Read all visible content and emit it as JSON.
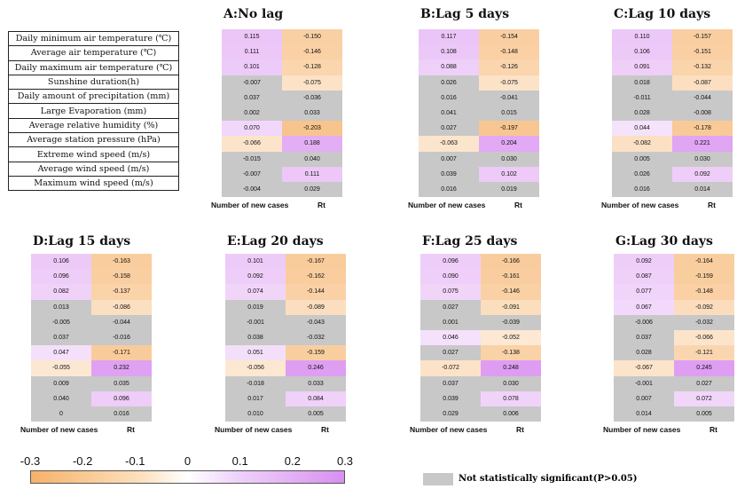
{
  "chart_data": {
    "type": "heatmap",
    "rows": [
      "Daily minimum air temperature (℃)",
      "Average air temperature (℃)",
      "Daily maximum air temperature (℃)",
      "Sunshine duration(h)",
      "Daily amount of precipitation (mm)",
      "Large Evaporation (mm)",
      "Average relative humidity (%)",
      "Average station pressure (hPa)",
      "Extreme wind speed (m/s)",
      "Average wind speed (m/s)",
      "Maximum wind speed (m/s)"
    ],
    "columns": [
      "Number of new cases",
      "Rt"
    ],
    "panels": [
      {
        "title": "A:No lag",
        "values": [
          [
            "0.115",
            "-0.150"
          ],
          [
            "0.111",
            "-0.146"
          ],
          [
            "0.101",
            "-0.128"
          ],
          [
            "-0.007",
            "-0.075"
          ],
          [
            "0.037",
            "-0.036"
          ],
          [
            "0.002",
            "0.033"
          ],
          [
            "0.070",
            "-0.203"
          ],
          [
            "-0.066",
            "0.188"
          ],
          [
            "-0.015",
            "0.040"
          ],
          [
            "-0.007",
            "0.111"
          ],
          [
            "-0.004",
            "0.029"
          ]
        ],
        "significant": [
          [
            1,
            1
          ],
          [
            1,
            1
          ],
          [
            1,
            1
          ],
          [
            0,
            1
          ],
          [
            0,
            0
          ],
          [
            0,
            0
          ],
          [
            1,
            1
          ],
          [
            1,
            1
          ],
          [
            0,
            0
          ],
          [
            0,
            1
          ],
          [
            0,
            0
          ]
        ]
      },
      {
        "title": "B:Lag 5 days",
        "values": [
          [
            "0.117",
            "-0.154"
          ],
          [
            "0.108",
            "-0.148"
          ],
          [
            "0.088",
            "-0.126"
          ],
          [
            "0.026",
            "-0.075"
          ],
          [
            "0.016",
            "-0.041"
          ],
          [
            "0.041",
            "0.015"
          ],
          [
            "0.027",
            "-0.197"
          ],
          [
            "-0.063",
            "0.204"
          ],
          [
            "0.007",
            "0.030"
          ],
          [
            "0.039",
            "0.102"
          ],
          [
            "0.016",
            "0.019"
          ]
        ],
        "significant": [
          [
            1,
            1
          ],
          [
            1,
            1
          ],
          [
            1,
            1
          ],
          [
            0,
            1
          ],
          [
            0,
            0
          ],
          [
            0,
            0
          ],
          [
            0,
            1
          ],
          [
            1,
            1
          ],
          [
            0,
            0
          ],
          [
            0,
            1
          ],
          [
            0,
            0
          ]
        ]
      },
      {
        "title": "C:Lag 10 days",
        "values": [
          [
            "0.110",
            "-0.157"
          ],
          [
            "0.106",
            "-0.151"
          ],
          [
            "0.091",
            "-0.132"
          ],
          [
            "0.018",
            "-0.087"
          ],
          [
            "-0.011",
            "-0.044"
          ],
          [
            "0.028",
            "-0.008"
          ],
          [
            "0.044",
            "-0.178"
          ],
          [
            "-0.082",
            "0.221"
          ],
          [
            "0.005",
            "0.030"
          ],
          [
            "0.026",
            "0.092"
          ],
          [
            "0.016",
            "0.014"
          ]
        ],
        "significant": [
          [
            1,
            1
          ],
          [
            1,
            1
          ],
          [
            1,
            1
          ],
          [
            0,
            1
          ],
          [
            0,
            0
          ],
          [
            0,
            0
          ],
          [
            1,
            1
          ],
          [
            1,
            1
          ],
          [
            0,
            0
          ],
          [
            0,
            1
          ],
          [
            0,
            0
          ]
        ]
      },
      {
        "title": "D:Lag 15 days",
        "values": [
          [
            "0.106",
            "-0.163"
          ],
          [
            "0.096",
            "-0.158"
          ],
          [
            "0.082",
            "-0.137"
          ],
          [
            "0.013",
            "-0.086"
          ],
          [
            "-0.005",
            "-0.044"
          ],
          [
            "0.037",
            "-0.016"
          ],
          [
            "0.047",
            "-0.171"
          ],
          [
            "-0.055",
            "0.232"
          ],
          [
            "0.009",
            "0.035"
          ],
          [
            "0.040",
            "0.096"
          ],
          [
            "0",
            "0.016"
          ]
        ],
        "significant": [
          [
            1,
            1
          ],
          [
            1,
            1
          ],
          [
            1,
            1
          ],
          [
            0,
            1
          ],
          [
            0,
            0
          ],
          [
            0,
            0
          ],
          [
            1,
            1
          ],
          [
            1,
            1
          ],
          [
            0,
            0
          ],
          [
            0,
            1
          ],
          [
            0,
            0
          ]
        ]
      },
      {
        "title": "E:Lag 20 days",
        "values": [
          [
            "0.101",
            "-0.167"
          ],
          [
            "0.092",
            "-0.162"
          ],
          [
            "0.074",
            "-0.144"
          ],
          [
            "0.019",
            "-0.089"
          ],
          [
            "-0.001",
            "-0.043"
          ],
          [
            "0.038",
            "-0.032"
          ],
          [
            "0.051",
            "-0.159"
          ],
          [
            "-0.056",
            "0.246"
          ],
          [
            "-0.018",
            "0.033"
          ],
          [
            "0.017",
            "0.084"
          ],
          [
            "0.010",
            "0.005"
          ]
        ],
        "significant": [
          [
            1,
            1
          ],
          [
            1,
            1
          ],
          [
            1,
            1
          ],
          [
            0,
            1
          ],
          [
            0,
            0
          ],
          [
            0,
            0
          ],
          [
            1,
            1
          ],
          [
            1,
            1
          ],
          [
            0,
            0
          ],
          [
            0,
            1
          ],
          [
            0,
            0
          ]
        ]
      },
      {
        "title": "F:Lag 25 days",
        "values": [
          [
            "0.096",
            "-0.166"
          ],
          [
            "0.090",
            "-0.161"
          ],
          [
            "0.075",
            "-0.146"
          ],
          [
            "0.027",
            "-0.091"
          ],
          [
            "0.001",
            "-0.039"
          ],
          [
            "0.046",
            "-0.052"
          ],
          [
            "0.027",
            "-0.138"
          ],
          [
            "-0.072",
            "0.248"
          ],
          [
            "0.037",
            "0.030"
          ],
          [
            "0.039",
            "0.078"
          ],
          [
            "0.029",
            "0.006"
          ]
        ],
        "significant": [
          [
            1,
            1
          ],
          [
            1,
            1
          ],
          [
            1,
            1
          ],
          [
            0,
            1
          ],
          [
            0,
            0
          ],
          [
            1,
            1
          ],
          [
            0,
            1
          ],
          [
            1,
            1
          ],
          [
            0,
            0
          ],
          [
            0,
            1
          ],
          [
            0,
            0
          ]
        ]
      },
      {
        "title": "G:Lag 30 days",
        "values": [
          [
            "0.092",
            "-0.164"
          ],
          [
            "0.087",
            "-0.159"
          ],
          [
            "0.077",
            "-0.148"
          ],
          [
            "0.067",
            "-0.092"
          ],
          [
            "-0.006",
            "-0.032"
          ],
          [
            "0.037",
            "-0.066"
          ],
          [
            "0.028",
            "-0.121"
          ],
          [
            "-0.067",
            "0.245"
          ],
          [
            "-0.001",
            "0.027"
          ],
          [
            "0.007",
            "0.072"
          ],
          [
            "0.014",
            "0.005"
          ]
        ],
        "significant": [
          [
            1,
            1
          ],
          [
            1,
            1
          ],
          [
            1,
            1
          ],
          [
            1,
            1
          ],
          [
            0,
            0
          ],
          [
            0,
            1
          ],
          [
            0,
            1
          ],
          [
            1,
            1
          ],
          [
            0,
            0
          ],
          [
            0,
            1
          ],
          [
            0,
            0
          ]
        ]
      }
    ],
    "colorbar": {
      "range": [
        -0.3,
        0.3
      ],
      "ticks": [
        "-0.3",
        "-0.2",
        "-0.1",
        "0",
        "0.1",
        "0.2",
        "0.3"
      ],
      "negative_color": "#f6b26a",
      "zero_color": "#ffffff",
      "positive_color": "#d98ff0"
    },
    "legend": {
      "not_significant_text": "Not statistically significant(P>0.05)",
      "not_significant_color": "#c8c8c8"
    }
  }
}
